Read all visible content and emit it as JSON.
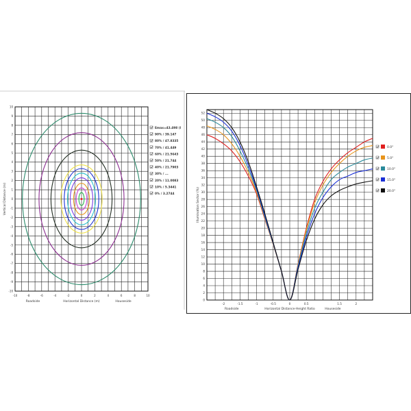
{
  "chart_data": [
    {
      "type": "contour",
      "xlabel": "Horizontal Distance (m)",
      "ylabel": "Vertical Distance (m)",
      "side_labels": {
        "left": "Roadside",
        "right": "Houseside"
      },
      "xlim": [
        -10,
        10
      ],
      "ylim": [
        -10,
        10
      ],
      "x_ticks": [
        "-10",
        "-8",
        "-6",
        "-4",
        "-2",
        "0",
        "2",
        "4",
        "6",
        "8",
        "10"
      ],
      "y_ticks": [
        "10",
        "9",
        "8",
        "7",
        "6",
        "5",
        "4",
        "3",
        "2",
        "1",
        "0",
        "-1",
        "-2",
        "-3",
        "-4",
        "-5",
        "-6",
        "-7",
        "-8",
        "-9",
        "-10"
      ],
      "grid": true,
      "legend_position": "right",
      "legend": [
        {
          "label": "Emax=43.498 (l",
          "color": "#e0201f"
        },
        {
          "label": "90% / 39.147",
          "color": "#26b34a"
        },
        {
          "label": "80% / 47.8335",
          "color": "#c93fd6"
        },
        {
          "label": "70% / 41.449",
          "color": "#e8941b"
        },
        {
          "label": "60% / 21.5643",
          "color": "#7b3fe6"
        },
        {
          "label": "50% / 21.744",
          "color": "#29c2d0"
        },
        {
          "label": "40% / 21.7903",
          "color": "#1a2fd6"
        },
        {
          "label": "30% / ...",
          "color": "#f0e24a"
        },
        {
          "label": "20% / 11.0083",
          "color": "#8a2b8f"
        },
        {
          "label": "10% / 5.3441",
          "color": "#1f2a1f"
        },
        {
          "label": "0% / 3.2744",
          "color": "#2a8a6a"
        }
      ],
      "contours": [
        {
          "color": "#2a8a6a",
          "rx": 8.9,
          "ry": 9.3
        },
        {
          "color": "#8a2b8f",
          "rx": 6.4,
          "ry": 7.2
        },
        {
          "color": "#1f2a1f",
          "rx": 4.6,
          "ry": 5.3
        },
        {
          "color": "#f0e24a",
          "rx": 3.1,
          "ry": 3.7
        },
        {
          "color": "#1a2fd6",
          "rx": 2.6,
          "ry": 3.3
        },
        {
          "color": "#29c2d0",
          "rx": 2.1,
          "ry": 2.8
        },
        {
          "color": "#7b3fe6",
          "rx": 1.7,
          "ry": 2.3
        },
        {
          "color": "#e8941b",
          "rx": 1.2,
          "ry": 1.7
        },
        {
          "color": "#c93fd6",
          "rx": 0.8,
          "ry": 1.2
        },
        {
          "color": "#26b34a",
          "rx": 0.4,
          "ry": 0.7
        }
      ],
      "center_marker": {
        "x": 0,
        "y": 0,
        "color": "#e0201f"
      }
    },
    {
      "type": "line",
      "xlabel": "Horizontal Distance-Height Ratio",
      "ylabel": "Illumination Sector (%)",
      "side_labels": {
        "left": "Roadside",
        "right": "Houseside"
      },
      "xlim": [
        -2.5,
        2.5
      ],
      "ylim": [
        0,
        53
      ],
      "x_ticks": [
        "-2",
        "-1.5",
        "-1",
        "-0.5",
        "0",
        "0.5",
        "1.5",
        "2"
      ],
      "x_tick_values": [
        -2,
        -1.5,
        -1,
        -0.5,
        0,
        0.5,
        1.5,
        2
      ],
      "y_ticks": [
        "0",
        "2",
        "4",
        "6",
        "8",
        "10",
        "12",
        "14",
        "16",
        "18",
        "20",
        "22",
        "24",
        "26",
        "28",
        "30",
        "32",
        "34",
        "36",
        "38",
        "40",
        "42",
        "44",
        "46",
        "48",
        "50",
        "52"
      ],
      "grid": true,
      "legend_position": "right",
      "x": [
        -2.5,
        -2.25,
        -2,
        -1.75,
        -1.5,
        -1.25,
        -1,
        -0.75,
        -0.5,
        -0.25,
        0,
        0.25,
        0.5,
        0.75,
        1,
        1.25,
        1.5,
        1.75,
        2,
        2.25,
        2.5
      ],
      "series": [
        {
          "name": "0.0°",
          "color": "#e0201f",
          "values": [
            46.0,
            45.0,
            43.5,
            41.5,
            38.5,
            34.5,
            29.5,
            22.5,
            15.5,
            8.0,
            0,
            10.0,
            20.0,
            28.0,
            33.0,
            36.5,
            39.0,
            41.0,
            42.5,
            44.0,
            45.0
          ]
        },
        {
          "name": "5.0°",
          "color": "#e8941b",
          "values": [
            48.5,
            47.5,
            46.0,
            43.5,
            40.0,
            35.5,
            30.0,
            22.8,
            15.5,
            8.0,
            0,
            9.8,
            19.5,
            27.0,
            32.0,
            35.5,
            38.0,
            40.0,
            41.5,
            42.5,
            43.0
          ]
        },
        {
          "name": "10.0°",
          "color": "#2a8a9a",
          "values": [
            50.5,
            49.5,
            48.0,
            45.5,
            41.5,
            36.5,
            30.5,
            23.0,
            15.7,
            8.0,
            0,
            9.5,
            18.5,
            25.5,
            30.0,
            33.5,
            35.5,
            37.0,
            38.0,
            39.0,
            39.5
          ]
        },
        {
          "name": "15.0°",
          "color": "#1a2fd6",
          "values": [
            52.0,
            51.0,
            49.5,
            47.0,
            43.0,
            37.5,
            31.0,
            23.5,
            15.8,
            8.0,
            0,
            9.0,
            17.5,
            24.0,
            28.5,
            31.5,
            33.5,
            34.5,
            35.5,
            36.0,
            36.5
          ]
        },
        {
          "name": "20.0°",
          "color": "#111111",
          "values": [
            53.0,
            52.0,
            50.5,
            48.0,
            44.0,
            38.5,
            31.5,
            24.0,
            16.0,
            8.0,
            0,
            8.5,
            16.5,
            22.5,
            26.5,
            29.0,
            30.5,
            31.5,
            32.3,
            32.8,
            33.2
          ]
        }
      ]
    }
  ]
}
